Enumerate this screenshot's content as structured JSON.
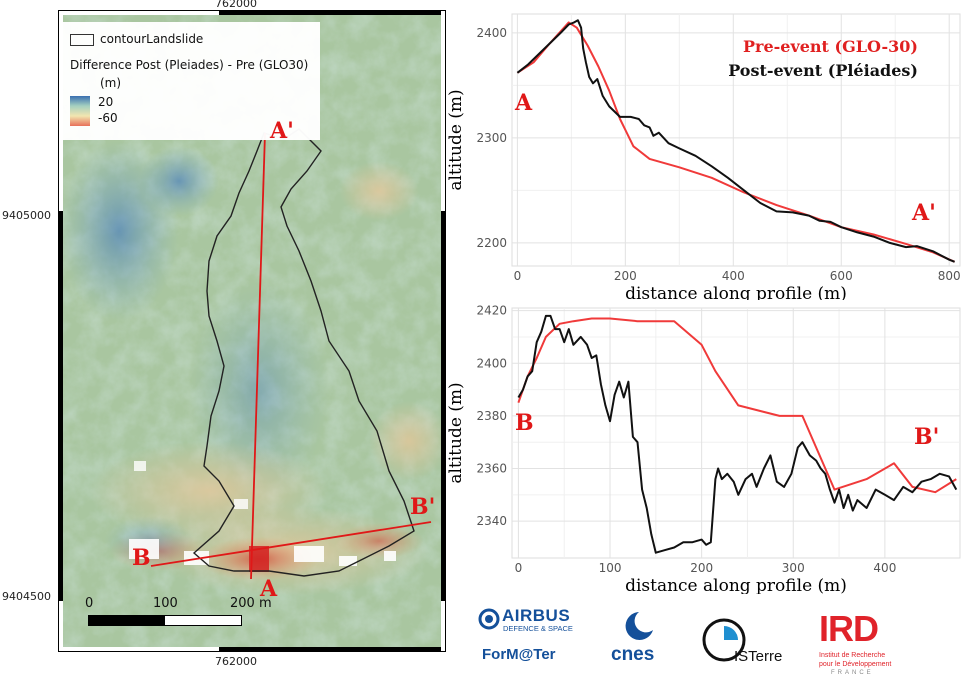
{
  "map": {
    "coords": {
      "top_x": "762000",
      "bottom_x": "762000",
      "left_y_upper": "9405000",
      "left_y_lower": "9404500"
    },
    "legend": {
      "item_contour": "contourLandslide",
      "title_line1": "Difference Post (Pleiades) - Pre (GLO30)",
      "title_line2": "(m)",
      "max_value": "20",
      "min_value": "-60"
    },
    "scalebar": {
      "label_0": "0",
      "label_100": "100",
      "label_200": "200 m"
    },
    "profile_labels": {
      "a": "A",
      "a_prime": "A'",
      "b": "B",
      "b_prime": "B'"
    },
    "colors": {
      "profile_line": "#e01818",
      "contour": "#222222",
      "legend_high": "#3a6fb0",
      "legend_low": "#e8705a"
    }
  },
  "chart_data": [
    {
      "type": "line",
      "xlabel": "distance along profile (m)",
      "ylabel": "altitude (m)",
      "xlim": [
        -10,
        820
      ],
      "ylim": [
        2178,
        2418
      ],
      "xticks": [
        0,
        200,
        400,
        600,
        800
      ],
      "yticks": [
        2200,
        2300,
        2400
      ],
      "grid": true,
      "start_label": "A",
      "end_label": "A'",
      "legend_position": "top-right",
      "series": [
        {
          "name": "Pre-event (GLO-30)",
          "color": "#f03a3a",
          "x": [
            0,
            30,
            60,
            95,
            110,
            130,
            150,
            170,
            190,
            215,
            245,
            300,
            360,
            420,
            480,
            540,
            600,
            660,
            720,
            770,
            810
          ],
          "y": [
            2362,
            2372,
            2390,
            2410,
            2405,
            2388,
            2368,
            2345,
            2318,
            2292,
            2280,
            2272,
            2262,
            2248,
            2236,
            2226,
            2215,
            2208,
            2199,
            2191,
            2182
          ]
        },
        {
          "name": "Post-event (Pléiades)",
          "color": "#111111",
          "x": [
            0,
            20,
            40,
            60,
            80,
            95,
            105,
            112,
            118,
            122,
            127,
            133,
            140,
            148,
            158,
            170,
            190,
            210,
            225,
            235,
            245,
            252,
            262,
            280,
            300,
            330,
            360,
            390,
            420,
            450,
            480,
            510,
            540,
            560,
            580,
            600,
            630,
            660,
            690,
            720,
            740,
            770,
            800,
            810
          ],
          "y": [
            2362,
            2370,
            2380,
            2390,
            2400,
            2408,
            2410,
            2412,
            2405,
            2385,
            2372,
            2358,
            2352,
            2356,
            2340,
            2330,
            2320,
            2320,
            2318,
            2312,
            2310,
            2302,
            2305,
            2295,
            2290,
            2283,
            2273,
            2262,
            2250,
            2238,
            2230,
            2229,
            2226,
            2221,
            2220,
            2215,
            2210,
            2206,
            2200,
            2196,
            2197,
            2192,
            2184,
            2182
          ]
        }
      ]
    },
    {
      "type": "line",
      "xlabel": "distance along profile (m)",
      "ylabel": "altitude (m)",
      "xlim": [
        -7,
        482
      ],
      "ylim": [
        2326,
        2421
      ],
      "xticks": [
        0,
        100,
        200,
        300,
        400
      ],
      "yticks": [
        2340,
        2360,
        2380,
        2400,
        2420
      ],
      "grid": true,
      "start_label": "B",
      "end_label": "B'",
      "series": [
        {
          "name": "Pre-event (GLO-30)",
          "color": "#f03a3a",
          "x": [
            0,
            10,
            20,
            30,
            45,
            60,
            80,
            100,
            130,
            170,
            200,
            215,
            240,
            285,
            310,
            345,
            380,
            410,
            430,
            455,
            478
          ],
          "y": [
            2385,
            2395,
            2402,
            2410,
            2415,
            2416,
            2417,
            2417,
            2416,
            2416,
            2407,
            2397,
            2384,
            2380,
            2380,
            2352,
            2356,
            2362,
            2353,
            2351,
            2356
          ]
        },
        {
          "name": "Post-event (Pléiades)",
          "color": "#111111",
          "x": [
            0,
            5,
            10,
            15,
            20,
            25,
            30,
            35,
            40,
            45,
            50,
            55,
            60,
            68,
            75,
            80,
            85,
            90,
            95,
            100,
            105,
            110,
            115,
            120,
            125,
            130,
            135,
            140,
            145,
            150,
            160,
            170,
            180,
            190,
            200,
            205,
            210,
            215,
            218,
            222,
            228,
            235,
            240,
            248,
            255,
            260,
            268,
            275,
            282,
            290,
            298,
            305,
            310,
            318,
            325,
            330,
            335,
            340,
            345,
            350,
            355,
            360,
            365,
            370,
            380,
            390,
            400,
            410,
            420,
            430,
            440,
            450,
            460,
            470,
            478
          ],
          "y": [
            2387,
            2390,
            2395,
            2397,
            2408,
            2412,
            2418,
            2418,
            2413,
            2413,
            2408,
            2413,
            2407,
            2410,
            2407,
            2402,
            2403,
            2392,
            2384,
            2378,
            2388,
            2393,
            2387,
            2393,
            2372,
            2370,
            2352,
            2345,
            2335,
            2328,
            2329,
            2330,
            2332,
            2332,
            2333,
            2331,
            2332,
            2356,
            2360,
            2356,
            2358,
            2355,
            2350,
            2356,
            2358,
            2353,
            2360,
            2365,
            2355,
            2353,
            2358,
            2368,
            2370,
            2365,
            2363,
            2360,
            2358,
            2352,
            2347,
            2352,
            2345,
            2350,
            2344,
            2348,
            2345,
            2352,
            2350,
            2348,
            2353,
            2351,
            2355,
            2356,
            2358,
            2357,
            2352
          ]
        }
      ]
    }
  ],
  "logos": {
    "airbus_name": "AIRBUS",
    "airbus_sub": "DEFENCE & SPACE",
    "formater": "ForM@Ter",
    "cnes": "cnes",
    "isterre": "ISTerre",
    "ird": "IRD",
    "ird_sub1": "Institut de Recherche",
    "ird_sub2": "pour le Développement",
    "ird_sub3": "FRANCE"
  }
}
